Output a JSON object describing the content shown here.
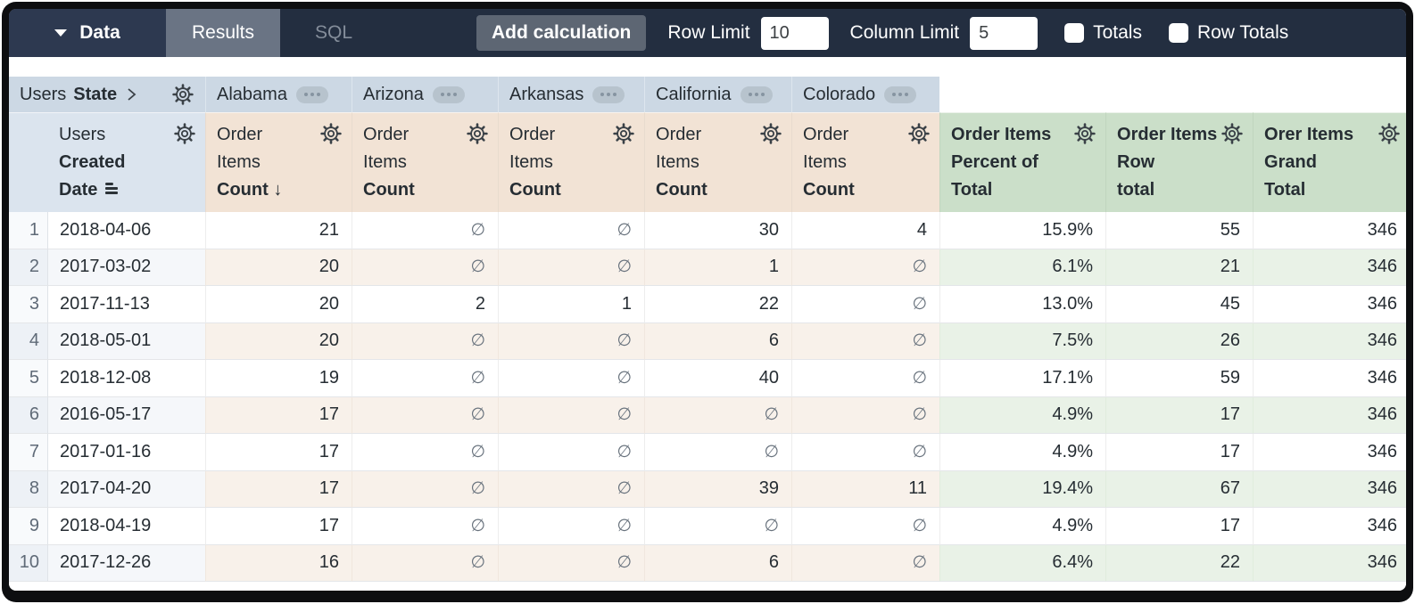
{
  "topbar": {
    "data_tab": "Data",
    "results_tab": "Results",
    "sql_tab": "SQL",
    "add_calculation": "Add calculation",
    "row_limit_label": "Row Limit",
    "row_limit_value": "10",
    "column_limit_label": "Column Limit",
    "column_limit_value": "5",
    "totals_label": "Totals",
    "row_totals_label": "Row Totals",
    "totals_checked": false,
    "row_totals_checked": false
  },
  "pivot": {
    "field_prefix": "Users",
    "field_name": "State",
    "values": [
      "Alabama",
      "Arizona",
      "Arkansas",
      "California",
      "Colorado"
    ]
  },
  "headers": {
    "dimension": {
      "line1": "Users",
      "line2": "Created",
      "line3": "Date"
    },
    "measure": {
      "line1": "Order",
      "line2": "Items",
      "line3": "Count"
    },
    "sort_arrow": "↓",
    "calcs": [
      {
        "line1": "Order Items",
        "line2": "Percent of",
        "line3": "Total"
      },
      {
        "line1": "Order Items",
        "line2": "Row",
        "line3": "total"
      },
      {
        "line1": "Orer Items",
        "line2": "Grand",
        "line3": "Total"
      }
    ]
  },
  "table": {
    "null_symbol": "∅",
    "rows": [
      {
        "num": "1",
        "date": "2018-04-06",
        "values": [
          "21",
          "∅",
          "∅",
          "30",
          "4"
        ],
        "percent": "15.9%",
        "row_total": "55",
        "grand_total": "346"
      },
      {
        "num": "2",
        "date": "2017-03-02",
        "values": [
          "20",
          "∅",
          "∅",
          "1",
          "∅"
        ],
        "percent": "6.1%",
        "row_total": "21",
        "grand_total": "346"
      },
      {
        "num": "3",
        "date": "2017-11-13",
        "values": [
          "20",
          "2",
          "1",
          "22",
          "∅"
        ],
        "percent": "13.0%",
        "row_total": "45",
        "grand_total": "346"
      },
      {
        "num": "4",
        "date": "2018-05-01",
        "values": [
          "20",
          "∅",
          "∅",
          "6",
          "∅"
        ],
        "percent": "7.5%",
        "row_total": "26",
        "grand_total": "346"
      },
      {
        "num": "5",
        "date": "2018-12-08",
        "values": [
          "19",
          "∅",
          "∅",
          "40",
          "∅"
        ],
        "percent": "17.1%",
        "row_total": "59",
        "grand_total": "346"
      },
      {
        "num": "6",
        "date": "2016-05-17",
        "values": [
          "17",
          "∅",
          "∅",
          "∅",
          "∅"
        ],
        "percent": "4.9%",
        "row_total": "17",
        "grand_total": "346"
      },
      {
        "num": "7",
        "date": "2017-01-16",
        "values": [
          "17",
          "∅",
          "∅",
          "∅",
          "∅"
        ],
        "percent": "4.9%",
        "row_total": "17",
        "grand_total": "346"
      },
      {
        "num": "8",
        "date": "2017-04-20",
        "values": [
          "17",
          "∅",
          "∅",
          "39",
          "11"
        ],
        "percent": "19.4%",
        "row_total": "67",
        "grand_total": "346"
      },
      {
        "num": "9",
        "date": "2018-04-19",
        "values": [
          "17",
          "∅",
          "∅",
          "∅",
          "∅"
        ],
        "percent": "4.9%",
        "row_total": "17",
        "grand_total": "346"
      },
      {
        "num": "10",
        "date": "2017-12-26",
        "values": [
          "16",
          "∅",
          "∅",
          "6",
          "∅"
        ],
        "percent": "6.4%",
        "row_total": "22",
        "grand_total": "346"
      }
    ]
  },
  "colors": {
    "topbar_bg": "#232e40",
    "pivot_header_bg": "#ccd8e4",
    "dimension_header_bg": "#dbe4ee",
    "measure_header_bg": "#f2e3d5",
    "calc_header_bg": "#cbdfc9",
    "measure_row_tint": "#f8f1ea",
    "calc_row_tint": "#e9f2e7"
  }
}
